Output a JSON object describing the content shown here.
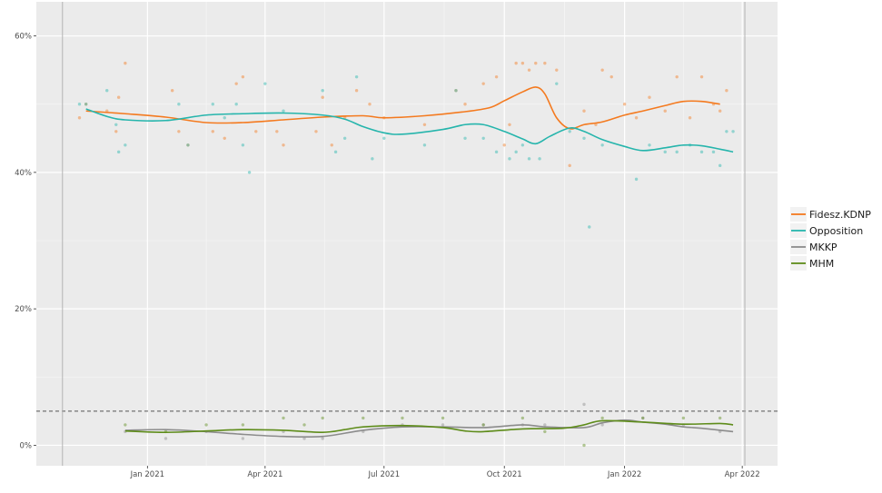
{
  "chart_data": {
    "type": "line",
    "y_axis": {
      "ticks": [
        0,
        20,
        40,
        60
      ],
      "tick_labels": [
        "0%",
        "20%",
        "40%",
        "60%"
      ],
      "range": [
        -3,
        65
      ]
    },
    "x_axis": {
      "ticks": [
        "2021-01-01",
        "2021-04-01",
        "2021-07-01",
        "2021-10-01",
        "2022-01-01",
        "2022-04-01"
      ],
      "tick_labels": [
        "Jan 2021",
        "Apr 2021",
        "Jul 2021",
        "Oct 2021",
        "Jan 2022",
        "Apr 2022"
      ],
      "range": [
        "2020-10-08",
        "2022-04-28"
      ]
    },
    "reference_lines": [
      {
        "y": 5,
        "style": "dashed"
      }
    ],
    "vertical_lines": [
      "2020-10-28",
      "2022-04-03"
    ],
    "legend": {
      "position": "right"
    },
    "series": [
      {
        "name": "Fidesz.KDNP",
        "color": "#F47A1F",
        "trend": [
          [
            "2020-11-15",
            49
          ],
          [
            "2020-12-15",
            48.6
          ],
          [
            "2021-01-15",
            48.1
          ],
          [
            "2021-02-15",
            47.3
          ],
          [
            "2021-03-15",
            47.3
          ],
          [
            "2021-04-15",
            47.7
          ],
          [
            "2021-05-15",
            48.1
          ],
          [
            "2021-06-15",
            48.3
          ],
          [
            "2021-07-01",
            48
          ],
          [
            "2021-08-01",
            48.3
          ],
          [
            "2021-09-01",
            48.9
          ],
          [
            "2021-09-20",
            49.5
          ],
          [
            "2021-10-01",
            50.5
          ],
          [
            "2021-10-15",
            51.8
          ],
          [
            "2021-10-25",
            52.5
          ],
          [
            "2021-11-01",
            51.5
          ],
          [
            "2021-11-10",
            48
          ],
          [
            "2021-11-20",
            46.4
          ],
          [
            "2021-12-01",
            47
          ],
          [
            "2021-12-15",
            47.4
          ],
          [
            "2022-01-01",
            48.4
          ],
          [
            "2022-01-15",
            49
          ],
          [
            "2022-02-01",
            49.8
          ],
          [
            "2022-02-15",
            50.4
          ],
          [
            "2022-03-01",
            50.4
          ],
          [
            "2022-03-15",
            50
          ]
        ],
        "points": [
          [
            "2020-11-10",
            48
          ],
          [
            "2020-11-15",
            50
          ],
          [
            "2020-12-01",
            49
          ],
          [
            "2020-12-08",
            46
          ],
          [
            "2020-12-10",
            51
          ],
          [
            "2020-12-15",
            56
          ],
          [
            "2021-01-20",
            52
          ],
          [
            "2021-01-25",
            46
          ],
          [
            "2021-02-01",
            44
          ],
          [
            "2021-02-20",
            46
          ],
          [
            "2021-03-01",
            45
          ],
          [
            "2021-03-10",
            53
          ],
          [
            "2021-03-15",
            54
          ],
          [
            "2021-03-25",
            46
          ],
          [
            "2021-04-10",
            46
          ],
          [
            "2021-04-15",
            44
          ],
          [
            "2021-05-10",
            46
          ],
          [
            "2021-05-15",
            51
          ],
          [
            "2021-05-22",
            44
          ],
          [
            "2021-06-01",
            48
          ],
          [
            "2021-06-10",
            52
          ],
          [
            "2021-06-20",
            50
          ],
          [
            "2021-07-01",
            48
          ],
          [
            "2021-08-01",
            47
          ],
          [
            "2021-08-25",
            52
          ],
          [
            "2021-09-01",
            50
          ],
          [
            "2021-09-15",
            53
          ],
          [
            "2021-09-25",
            54
          ],
          [
            "2021-10-01",
            44
          ],
          [
            "2021-10-05",
            47
          ],
          [
            "2021-10-10",
            56
          ],
          [
            "2021-10-15",
            56
          ],
          [
            "2021-10-20",
            55
          ],
          [
            "2021-10-25",
            56
          ],
          [
            "2021-11-01",
            56
          ],
          [
            "2021-11-10",
            55
          ],
          [
            "2021-11-20",
            41
          ],
          [
            "2021-12-01",
            49
          ],
          [
            "2021-12-10",
            47
          ],
          [
            "2021-12-15",
            55
          ],
          [
            "2021-12-22",
            54
          ],
          [
            "2022-01-01",
            50
          ],
          [
            "2022-01-10",
            48
          ],
          [
            "2022-01-20",
            51
          ],
          [
            "2022-02-01",
            49
          ],
          [
            "2022-02-10",
            54
          ],
          [
            "2022-02-20",
            48
          ],
          [
            "2022-03-01",
            54
          ],
          [
            "2022-03-10",
            50
          ],
          [
            "2022-03-15",
            49
          ],
          [
            "2022-03-20",
            52
          ]
        ]
      },
      {
        "name": "Opposition",
        "color": "#26B5AC",
        "trend": [
          [
            "2020-11-15",
            49.3
          ],
          [
            "2020-12-01",
            48.2
          ],
          [
            "2020-12-15",
            47.7
          ],
          [
            "2021-01-15",
            47.6
          ],
          [
            "2021-02-15",
            48.4
          ],
          [
            "2021-03-15",
            48.6
          ],
          [
            "2021-04-15",
            48.7
          ],
          [
            "2021-05-15",
            48.4
          ],
          [
            "2021-06-01",
            47.8
          ],
          [
            "2021-06-15",
            46.7
          ],
          [
            "2021-07-01",
            45.8
          ],
          [
            "2021-07-15",
            45.6
          ],
          [
            "2021-08-15",
            46.3
          ],
          [
            "2021-09-01",
            47
          ],
          [
            "2021-09-15",
            47
          ],
          [
            "2021-10-01",
            46
          ],
          [
            "2021-10-15",
            44.9
          ],
          [
            "2021-10-25",
            44.2
          ],
          [
            "2021-11-05",
            45.3
          ],
          [
            "2021-11-20",
            46.5
          ],
          [
            "2021-12-01",
            46
          ],
          [
            "2021-12-15",
            44.8
          ],
          [
            "2022-01-01",
            43.8
          ],
          [
            "2022-01-15",
            43.2
          ],
          [
            "2022-02-01",
            43.6
          ],
          [
            "2022-02-15",
            44
          ],
          [
            "2022-03-01",
            43.9
          ],
          [
            "2022-03-15",
            43.4
          ],
          [
            "2022-03-25",
            43
          ]
        ],
        "points": [
          [
            "2020-11-10",
            50
          ],
          [
            "2020-11-15",
            50
          ],
          [
            "2020-12-01",
            52
          ],
          [
            "2020-12-08",
            47
          ],
          [
            "2020-12-10",
            43
          ],
          [
            "2020-12-15",
            44
          ],
          [
            "2021-01-25",
            50
          ],
          [
            "2021-02-01",
            44
          ],
          [
            "2021-02-20",
            50
          ],
          [
            "2021-03-01",
            48
          ],
          [
            "2021-03-10",
            50
          ],
          [
            "2021-03-15",
            44
          ],
          [
            "2021-03-20",
            40
          ],
          [
            "2021-04-01",
            53
          ],
          [
            "2021-04-15",
            49
          ],
          [
            "2021-05-15",
            52
          ],
          [
            "2021-05-25",
            43
          ],
          [
            "2021-06-01",
            45
          ],
          [
            "2021-06-10",
            54
          ],
          [
            "2021-06-22",
            42
          ],
          [
            "2021-07-01",
            45
          ],
          [
            "2021-08-01",
            44
          ],
          [
            "2021-08-25",
            52
          ],
          [
            "2021-09-01",
            45
          ],
          [
            "2021-09-15",
            45
          ],
          [
            "2021-09-25",
            43
          ],
          [
            "2021-10-05",
            42
          ],
          [
            "2021-10-10",
            43
          ],
          [
            "2021-10-15",
            44
          ],
          [
            "2021-10-20",
            42
          ],
          [
            "2021-10-28",
            42
          ],
          [
            "2021-11-10",
            53
          ],
          [
            "2021-11-20",
            46
          ],
          [
            "2021-12-01",
            45
          ],
          [
            "2021-12-05",
            32
          ],
          [
            "2021-12-15",
            44
          ],
          [
            "2022-01-10",
            39
          ],
          [
            "2022-01-20",
            44
          ],
          [
            "2022-02-01",
            43
          ],
          [
            "2022-02-10",
            43
          ],
          [
            "2022-02-20",
            44
          ],
          [
            "2022-03-01",
            43
          ],
          [
            "2022-03-10",
            43
          ],
          [
            "2022-03-15",
            41
          ],
          [
            "2022-03-20",
            46
          ],
          [
            "2022-03-25",
            46
          ]
        ]
      },
      {
        "name": "MKKP",
        "color": "#8C8C8C",
        "trend": [
          [
            "2020-12-15",
            2.2
          ],
          [
            "2021-01-15",
            2.3
          ],
          [
            "2021-02-15",
            2
          ],
          [
            "2021-03-15",
            1.6
          ],
          [
            "2021-04-15",
            1.3
          ],
          [
            "2021-05-15",
            1.3
          ],
          [
            "2021-06-15",
            2.2
          ],
          [
            "2021-07-15",
            2.7
          ],
          [
            "2021-08-15",
            2.7
          ],
          [
            "2021-09-15",
            2.6
          ],
          [
            "2021-10-15",
            3
          ],
          [
            "2021-11-01",
            2.7
          ],
          [
            "2021-12-01",
            2.6
          ],
          [
            "2021-12-15",
            3.3
          ],
          [
            "2022-01-01",
            3.7
          ],
          [
            "2022-01-15",
            3.4
          ],
          [
            "2022-02-01",
            3.1
          ],
          [
            "2022-02-15",
            2.7
          ],
          [
            "2022-03-01",
            2.5
          ],
          [
            "2022-03-25",
            2
          ]
        ],
        "points": [
          [
            "2020-12-15",
            2
          ],
          [
            "2021-01-15",
            1
          ],
          [
            "2021-02-15",
            2
          ],
          [
            "2021-03-15",
            1
          ],
          [
            "2021-04-15",
            2
          ],
          [
            "2021-05-01",
            1
          ],
          [
            "2021-05-15",
            1
          ],
          [
            "2021-06-15",
            2
          ],
          [
            "2021-07-15",
            3
          ],
          [
            "2021-08-15",
            3
          ],
          [
            "2021-09-15",
            3
          ],
          [
            "2021-10-15",
            3
          ],
          [
            "2021-11-01",
            3
          ],
          [
            "2021-12-01",
            6
          ],
          [
            "2021-12-15",
            3
          ],
          [
            "2022-01-15",
            4
          ],
          [
            "2022-02-15",
            3
          ],
          [
            "2022-03-15",
            2
          ]
        ]
      },
      {
        "name": "MHM",
        "color": "#5E8C1A",
        "trend": [
          [
            "2020-12-15",
            2.1
          ],
          [
            "2021-01-15",
            1.9
          ],
          [
            "2021-02-15",
            2.1
          ],
          [
            "2021-03-15",
            2.3
          ],
          [
            "2021-04-15",
            2.2
          ],
          [
            "2021-05-15",
            1.9
          ],
          [
            "2021-06-01",
            2.3
          ],
          [
            "2021-06-15",
            2.7
          ],
          [
            "2021-07-15",
            2.9
          ],
          [
            "2021-08-15",
            2.6
          ],
          [
            "2021-09-01",
            2.1
          ],
          [
            "2021-09-15",
            2
          ],
          [
            "2021-10-15",
            2.4
          ],
          [
            "2021-11-15",
            2.5
          ],
          [
            "2021-12-01",
            3
          ],
          [
            "2021-12-15",
            3.6
          ],
          [
            "2022-01-15",
            3.4
          ],
          [
            "2022-02-15",
            3.1
          ],
          [
            "2022-03-15",
            3.2
          ],
          [
            "2022-03-25",
            3
          ]
        ],
        "points": [
          [
            "2020-12-15",
            3
          ],
          [
            "2021-01-15",
            2
          ],
          [
            "2021-02-15",
            3
          ],
          [
            "2021-03-15",
            3
          ],
          [
            "2021-04-15",
            4
          ],
          [
            "2021-05-01",
            3
          ],
          [
            "2021-05-15",
            4
          ],
          [
            "2021-06-15",
            4
          ],
          [
            "2021-07-15",
            4
          ],
          [
            "2021-08-15",
            4
          ],
          [
            "2021-09-15",
            3
          ],
          [
            "2021-10-15",
            4
          ],
          [
            "2021-11-01",
            2
          ],
          [
            "2021-12-01",
            0
          ],
          [
            "2021-12-15",
            4
          ],
          [
            "2022-01-15",
            4
          ],
          [
            "2022-02-15",
            4
          ],
          [
            "2022-03-15",
            4
          ]
        ]
      }
    ]
  }
}
